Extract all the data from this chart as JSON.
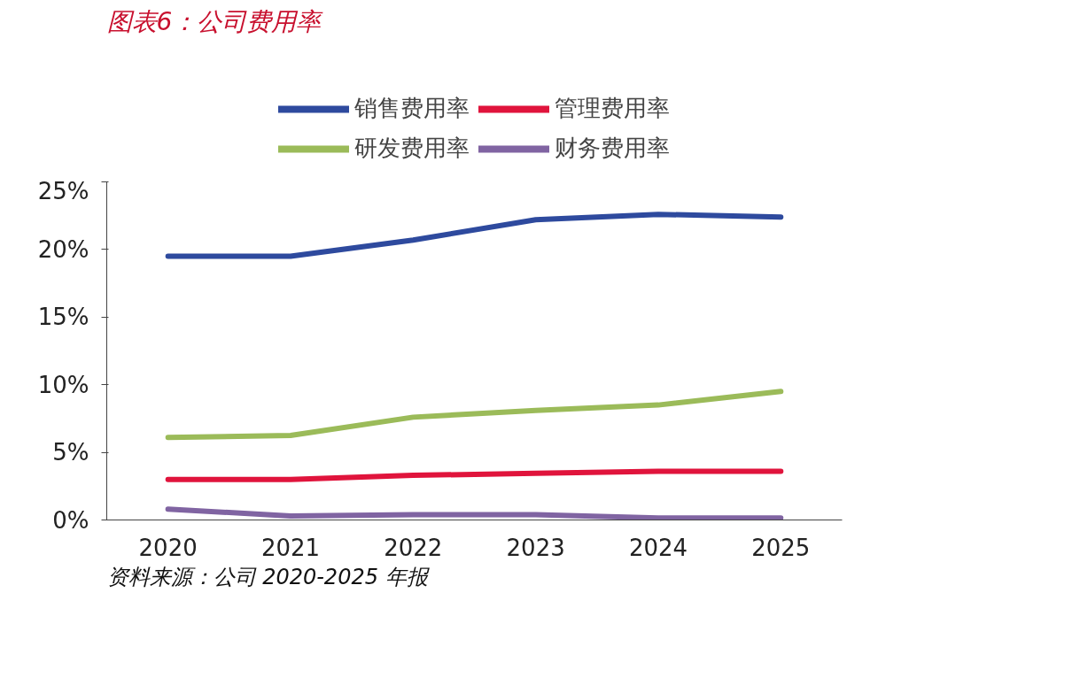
{
  "chart_data": {
    "type": "line",
    "title": "图表6：公司费用率",
    "categories": [
      "2020",
      "2021",
      "2022",
      "2023",
      "2024",
      "2025"
    ],
    "series": [
      {
        "name": "销售费用率",
        "color": "#2e4a9e",
        "values": [
          19.5,
          19.5,
          20.7,
          22.2,
          22.6,
          22.4
        ]
      },
      {
        "name": "管理费用率",
        "color": "#e0143c",
        "values": [
          3.0,
          3.0,
          3.3,
          3.45,
          3.6,
          3.6
        ]
      },
      {
        "name": "研发费用率",
        "color": "#9bbb59",
        "values": [
          6.1,
          6.25,
          7.6,
          8.1,
          8.5,
          9.5
        ]
      },
      {
        "name": "财务费用率",
        "color": "#8064a2",
        "values": [
          0.8,
          0.3,
          0.4,
          0.4,
          0.15,
          0.15
        ]
      }
    ],
    "ylim": [
      0,
      25
    ],
    "yticks": [
      {
        "value": 0,
        "label": "0%"
      },
      {
        "value": 5,
        "label": "5%"
      },
      {
        "value": 10,
        "label": "10%"
      },
      {
        "value": 15,
        "label": "15%"
      },
      {
        "value": 20,
        "label": "20%"
      },
      {
        "value": 25,
        "label": "25%"
      }
    ],
    "legend": "top",
    "grid": false,
    "marker": "none",
    "line_style": "solid",
    "annotations": [
      "资料来源：公司 2020-2025 年报"
    ]
  }
}
